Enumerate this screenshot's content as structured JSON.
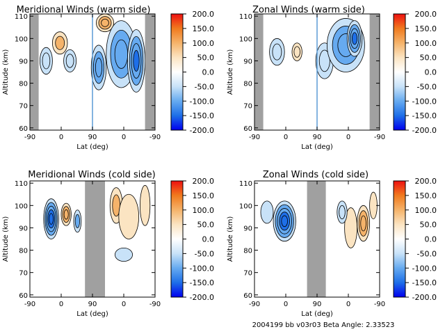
{
  "footer": "2004199 bb v03r03   Beta Angle: 2.33523",
  "colorbar": {
    "ticks": [
      "200.0",
      "150.0",
      "100.0",
      "50.0",
      "0.0",
      "-50.0",
      "-100.0",
      "-150.0",
      "-200.0"
    ],
    "range": [
      -200,
      200
    ],
    "colors": [
      "#0000ee",
      "#1e6fe8",
      "#66aaf0",
      "#c8e2f8",
      "#ffffff",
      "#fbe4c2",
      "#f5b36a",
      "#f07a1e",
      "#ee1010"
    ]
  },
  "chart_data": [
    {
      "type": "heatmap",
      "title": "Meridional Winds (warm side)",
      "xlabel": "Lat (deg)",
      "ylabel": "Altitude (km)",
      "xticks": [
        "-90",
        "0",
        "90",
        "0",
        "-90"
      ],
      "yticks": [
        "60",
        "70",
        "80",
        "90",
        "100",
        "110"
      ],
      "ylim": [
        59,
        111
      ],
      "gray_bands": [
        [
          0,
          0.07
        ],
        [
          0.92,
          1
        ]
      ],
      "separator": 0.5,
      "blobs": [
        {
          "cx": 0.24,
          "y": 98,
          "rx": 0.06,
          "ry": 5,
          "value": 80
        },
        {
          "cx": 0.13,
          "y": 90,
          "rx": 0.05,
          "ry": 6,
          "value": -60
        },
        {
          "cx": 0.32,
          "y": 90,
          "rx": 0.05,
          "ry": 5,
          "value": -50
        },
        {
          "cx": 0.6,
          "y": 107,
          "rx": 0.07,
          "ry": 4,
          "value": 120
        },
        {
          "cx": 0.55,
          "y": 87,
          "rx": 0.06,
          "ry": 10,
          "value": -110
        },
        {
          "cx": 0.73,
          "y": 93,
          "rx": 0.12,
          "ry": 15,
          "value": -90
        },
        {
          "cx": 0.85,
          "y": 90,
          "rx": 0.07,
          "ry": 14,
          "value": -150
        }
      ]
    },
    {
      "type": "heatmap",
      "title": "Zonal Winds (warm side)",
      "xlabel": "Lat (deg)",
      "ylabel": "Altitude (km)",
      "xticks": [
        "-90",
        "0",
        "90",
        "0",
        "-90"
      ],
      "yticks": [
        "60",
        "70",
        "80",
        "90",
        "100",
        "110"
      ],
      "ylim": [
        59,
        111
      ],
      "gray_bands": [
        [
          0,
          0.07
        ],
        [
          0.92,
          1
        ]
      ],
      "separator": 0.5,
      "blobs": [
        {
          "cx": 0.18,
          "y": 94,
          "rx": 0.06,
          "ry": 6,
          "value": -60
        },
        {
          "cx": 0.34,
          "y": 94,
          "rx": 0.04,
          "ry": 4,
          "value": 50
        },
        {
          "cx": 0.56,
          "y": 90,
          "rx": 0.07,
          "ry": 8,
          "value": -50
        },
        {
          "cx": 0.73,
          "y": 97,
          "rx": 0.15,
          "ry": 12,
          "value": -90
        },
        {
          "cx": 0.8,
          "y": 100,
          "rx": 0.06,
          "ry": 8,
          "value": -140
        }
      ]
    },
    {
      "type": "heatmap",
      "title": "Meridional Winds (cold side)",
      "xlabel": "Lat (deg)",
      "ylabel": "Altitude (km)",
      "xticks": [
        "-90",
        "0",
        "90",
        "0",
        "-90"
      ],
      "yticks": [
        "60",
        "70",
        "80",
        "90",
        "100",
        "110"
      ],
      "ylim": [
        59,
        111
      ],
      "gray_bands": [
        [
          0.44,
          0.6
        ]
      ],
      "separator": null,
      "blobs": [
        {
          "cx": 0.17,
          "y": 94,
          "rx": 0.06,
          "ry": 9,
          "value": -170
        },
        {
          "cx": 0.29,
          "y": 96,
          "rx": 0.04,
          "ry": 5,
          "value": 120
        },
        {
          "cx": 0.38,
          "y": 93,
          "rx": 0.03,
          "ry": 5,
          "value": -80
        },
        {
          "cx": 0.69,
          "y": 100,
          "rx": 0.05,
          "ry": 8,
          "value": 80
        },
        {
          "cx": 0.79,
          "y": 95,
          "rx": 0.08,
          "ry": 10,
          "value": 40
        },
        {
          "cx": 0.92,
          "y": 100,
          "rx": 0.04,
          "ry": 9,
          "value": 40
        },
        {
          "cx": 0.75,
          "y": 78,
          "rx": 0.07,
          "ry": 3,
          "value": -40
        }
      ]
    },
    {
      "type": "heatmap",
      "title": "Zonal Winds (cold side)",
      "xlabel": "Lat (deg)",
      "ylabel": "Altitude (km)",
      "xticks": [
        "-90",
        "0",
        "90",
        "0",
        "-90"
      ],
      "yticks": [
        "60",
        "70",
        "80",
        "90",
        "100",
        "110"
      ],
      "ylim": [
        59,
        111
      ],
      "gray_bands": [
        [
          0.42,
          0.57
        ]
      ],
      "separator": null,
      "blobs": [
        {
          "cx": 0.24,
          "y": 93,
          "rx": 0.09,
          "ry": 9,
          "value": -170
        },
        {
          "cx": 0.1,
          "y": 97,
          "rx": 0.05,
          "ry": 5,
          "value": -40
        },
        {
          "cx": 0.87,
          "y": 92,
          "rx": 0.05,
          "ry": 8,
          "value": 90
        },
        {
          "cx": 0.77,
          "y": 90,
          "rx": 0.05,
          "ry": 9,
          "value": 30
        },
        {
          "cx": 0.7,
          "y": 97,
          "rx": 0.04,
          "ry": 5,
          "value": -60
        },
        {
          "cx": 0.95,
          "y": 100,
          "rx": 0.03,
          "ry": 6,
          "value": 40
        }
      ]
    }
  ]
}
